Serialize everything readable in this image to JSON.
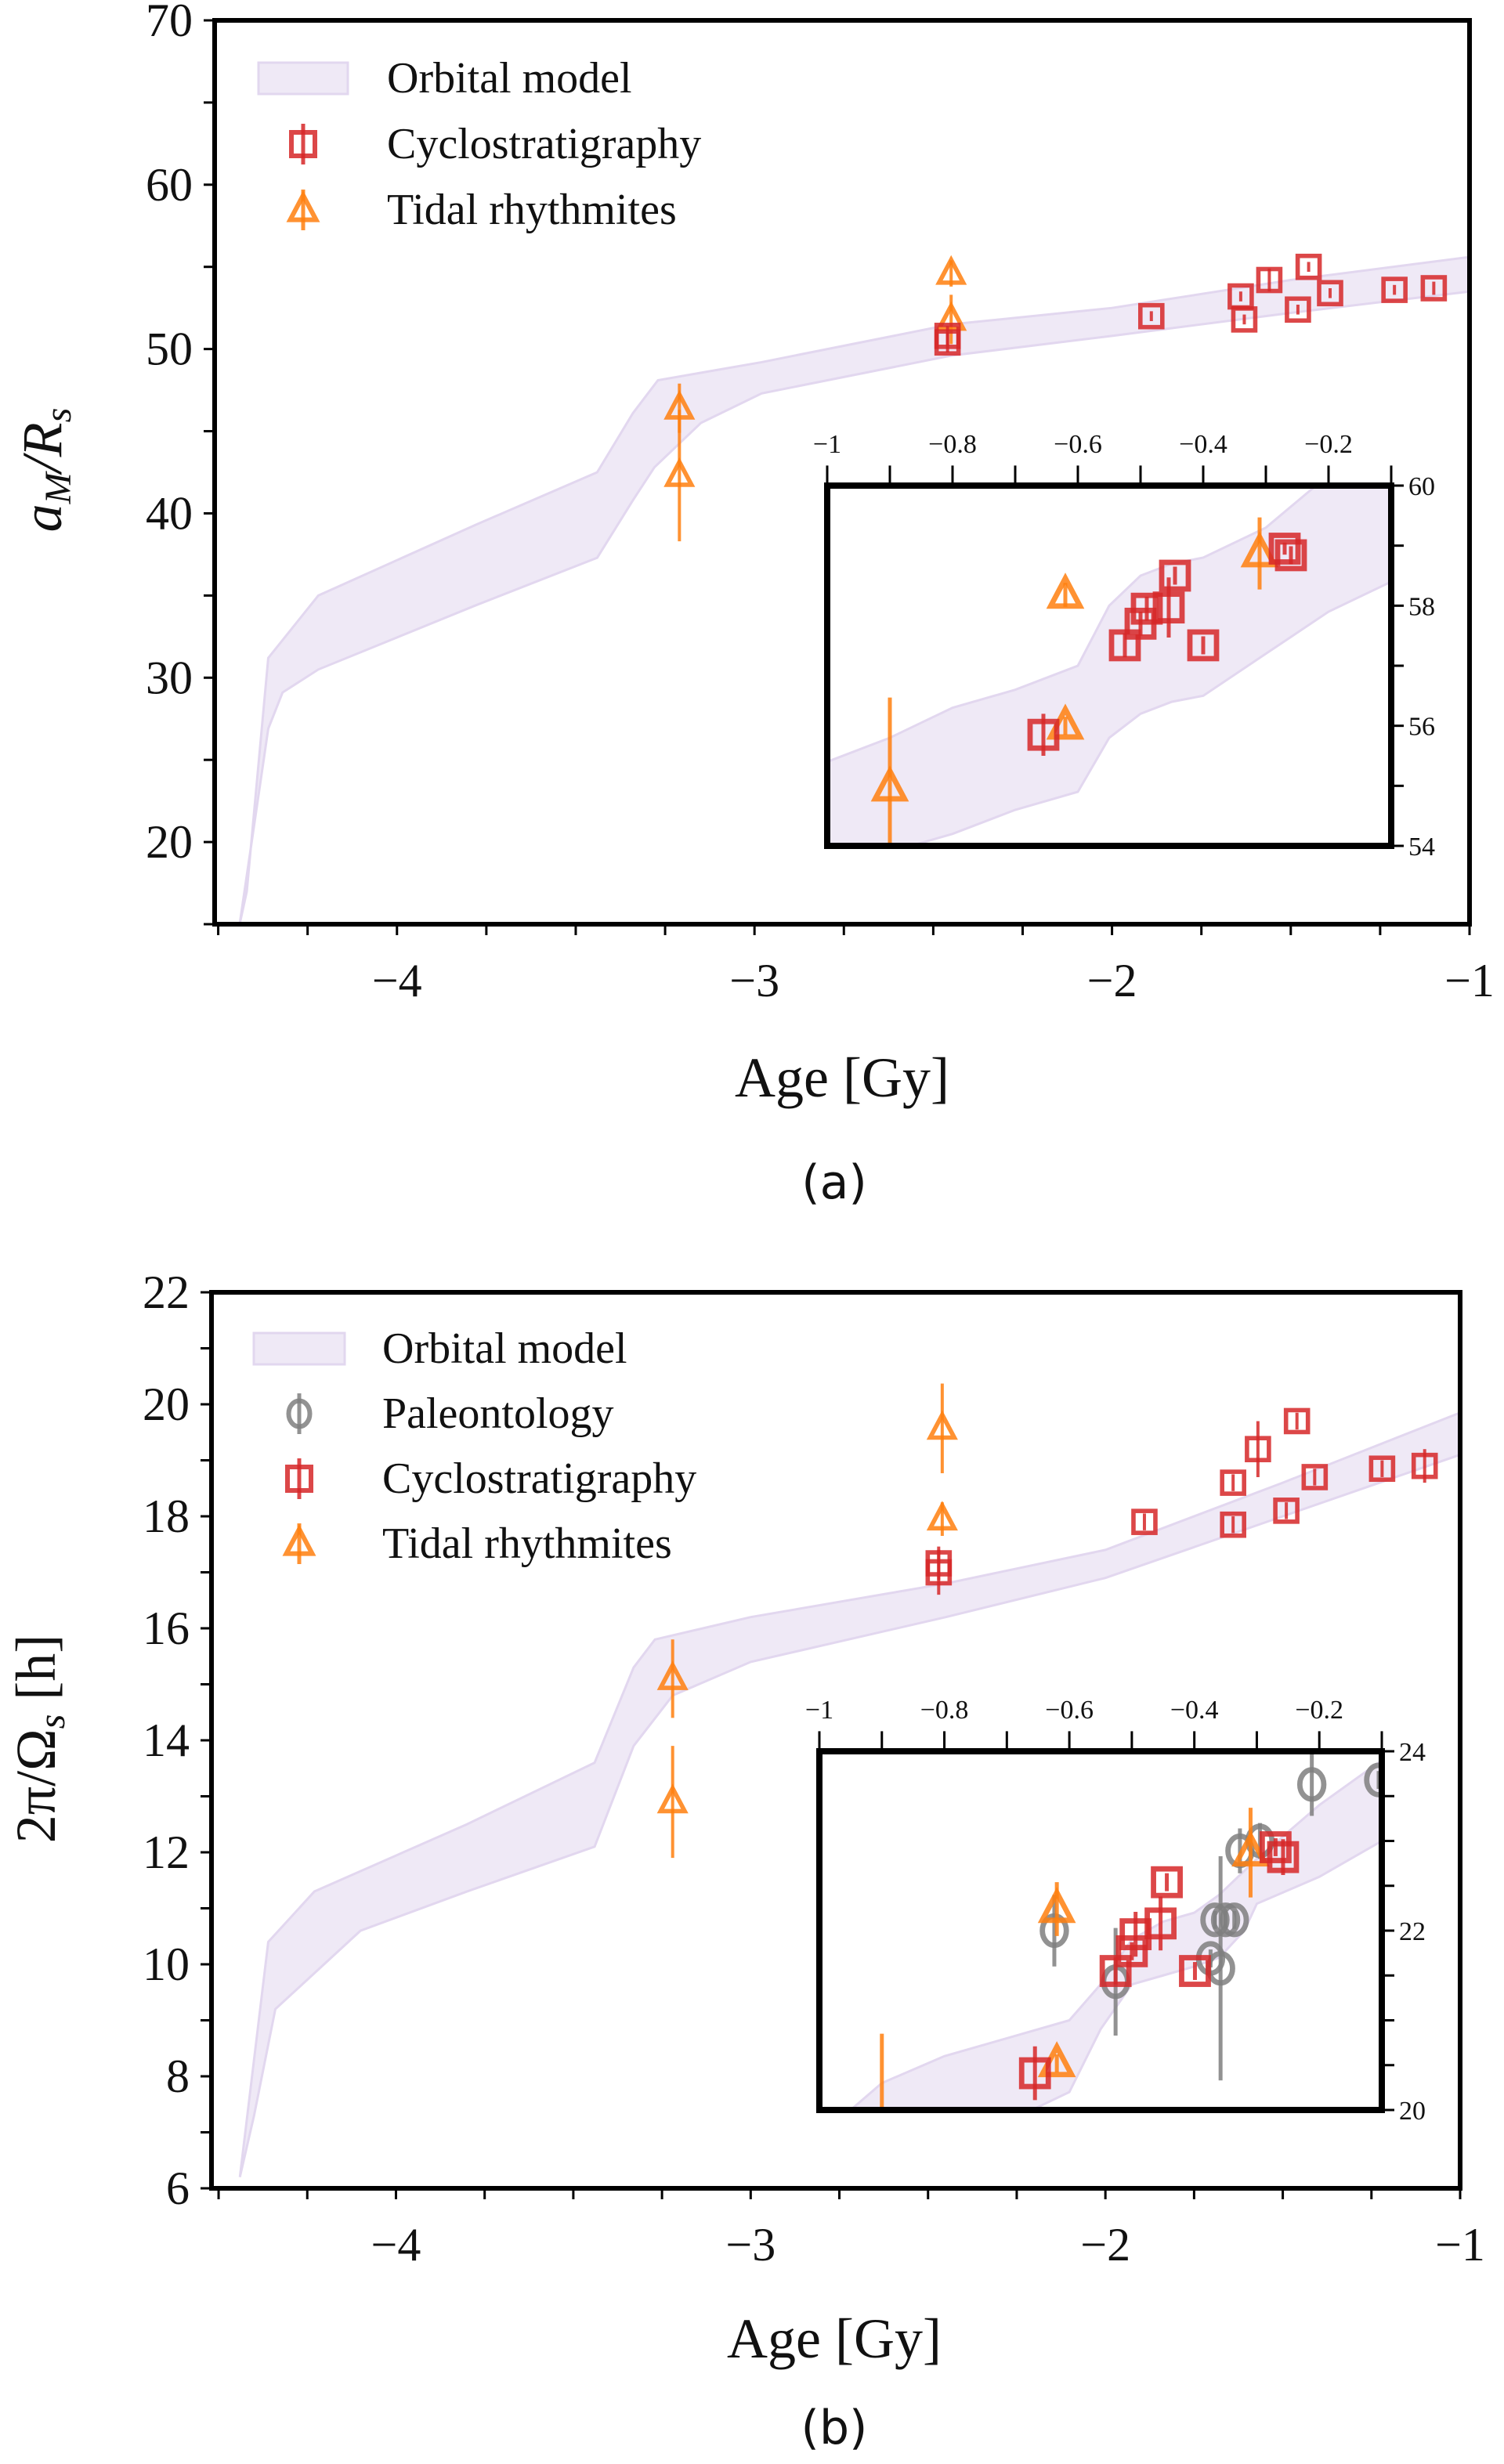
{
  "colors": {
    "band_fill": "#efe9f6",
    "band_edge": "#e2d7ef",
    "cyclo": "#d62728",
    "tidal": "#ff7f0e",
    "paleo": "#7f7f7f",
    "axis": "#000000"
  },
  "chart_data": [
    {
      "type": "scatter",
      "caption": "(a)",
      "xlabel": "Age [Gy]",
      "ylabel_parts": [
        {
          "t": "a"
        },
        {
          "t": "M",
          "sub": true
        },
        {
          "t": "/R"
        },
        {
          "t": "s",
          "sub": true
        }
      ],
      "legend": [
        {
          "label": "Orbital model",
          "kind": "band"
        },
        {
          "label": "Cyclostratigraphy",
          "kind": "cyclo"
        },
        {
          "label": "Tidal rhythmites",
          "kind": "tidal"
        }
      ],
      "legend_placement": "top-left",
      "main": {
        "xlim": [
          -4.51,
          -1
        ],
        "ylim": [
          15,
          70
        ],
        "xticks": [
          -4,
          -3,
          -2,
          -1
        ],
        "xtick_labels": [
          "−4",
          "−3",
          "−2",
          "−1"
        ],
        "xminor_step": 0.25,
        "yticks": [
          20,
          30,
          40,
          50,
          60,
          70
        ],
        "ytick_labels": [
          "20",
          "30",
          "40",
          "50",
          "60",
          "70"
        ],
        "yminor_step": 5,
        "band_upper": [
          [
            -4.44,
            15
          ],
          [
            -4.42,
            17
          ],
          [
            -4.36,
            31.2
          ],
          [
            -4.22,
            35
          ],
          [
            -3.78,
            39.3
          ],
          [
            -3.44,
            42.5
          ],
          [
            -3.34,
            46.1
          ],
          [
            -3.27,
            48.1
          ],
          [
            -2.98,
            49.2
          ],
          [
            -2.45,
            51.5
          ],
          [
            -2,
            52.5
          ],
          [
            -1.5,
            54.2
          ],
          [
            -1,
            55.6
          ]
        ],
        "band_lower": [
          [
            -4.44,
            15
          ],
          [
            -4.36,
            26.9
          ],
          [
            -4.32,
            29.1
          ],
          [
            -4.22,
            30.5
          ],
          [
            -3.78,
            34.4
          ],
          [
            -3.44,
            37.3
          ],
          [
            -3.34,
            40.8
          ],
          [
            -3.28,
            42.8
          ],
          [
            -3.15,
            45.5
          ],
          [
            -2.98,
            47.3
          ],
          [
            -2.45,
            49.6
          ],
          [
            -2,
            50.8
          ],
          [
            -1.5,
            52.2
          ],
          [
            -1,
            53.5
          ]
        ],
        "series": {
          "cyclo": [
            [
              -2.46,
              50.8,
              0.6
            ],
            [
              -2.46,
              50.4,
              0.6
            ],
            [
              -1.89,
              52.0,
              0.3
            ],
            [
              -1.64,
              53.2,
              0.3
            ],
            [
              -1.63,
              51.8,
              0.3
            ],
            [
              -1.56,
              54.2,
              0.7
            ],
            [
              -1.45,
              55.0,
              0.3
            ],
            [
              -1.48,
              52.4,
              0.3
            ],
            [
              -1.39,
              53.4,
              0.3
            ],
            [
              -1.21,
              53.6,
              0.3
            ],
            [
              -1.1,
              53.7,
              0.4
            ]
          ],
          "tidal": [
            [
              -3.21,
              46.4,
              1.5
            ],
            [
              -3.21,
              42.3,
              4.0
            ],
            [
              -2.45,
              54.6,
              0.8
            ],
            [
              -2.45,
              51.8,
              1.5
            ]
          ]
        }
      },
      "inset": {
        "xlim": [
          -1,
          -0.1
        ],
        "ylim": [
          54,
          60
        ],
        "xticks": [
          -1,
          -0.8,
          -0.6,
          -0.4,
          -0.2
        ],
        "xtick_labels": [
          "−1",
          "−0.8",
          "−0.6",
          "−0.4",
          "−0.2"
        ],
        "xminor_step": 0.1,
        "yticks": [
          54,
          56,
          58,
          60
        ],
        "ytick_labels": [
          "54",
          "56",
          "58",
          "60"
        ],
        "yminor_step": 1,
        "band_upper": [
          [
            -1,
            55.4
          ],
          [
            -0.9,
            55.8
          ],
          [
            -0.8,
            56.3
          ],
          [
            -0.7,
            56.6
          ],
          [
            -0.6,
            57.0
          ],
          [
            -0.55,
            58.0
          ],
          [
            -0.5,
            58.5
          ],
          [
            -0.45,
            58.7
          ],
          [
            -0.4,
            58.8
          ],
          [
            -0.3,
            59.3
          ],
          [
            -0.22,
            60
          ],
          [
            -0.1,
            60
          ]
        ],
        "band_lower": [
          [
            -1,
            53.6
          ],
          [
            -0.8,
            54.2
          ],
          [
            -0.7,
            54.6
          ],
          [
            -0.6,
            54.9
          ],
          [
            -0.55,
            55.8
          ],
          [
            -0.5,
            56.2
          ],
          [
            -0.45,
            56.4
          ],
          [
            -0.4,
            56.5
          ],
          [
            -0.3,
            57.2
          ],
          [
            -0.2,
            57.9
          ],
          [
            -0.1,
            58.4
          ]
        ],
        "series": {
          "cyclo": [
            [
              -0.655,
              55.85,
              0.35
            ],
            [
              -0.525,
              57.34,
              0.2
            ],
            [
              -0.5,
              57.7,
              0.2
            ],
            [
              -0.49,
              57.95,
              0.2
            ],
            [
              -0.455,
              57.97,
              0.5
            ],
            [
              -0.445,
              58.5,
              0.15
            ],
            [
              -0.4,
              57.34,
              0.15
            ],
            [
              -0.27,
              58.95,
              0.1
            ],
            [
              -0.26,
              58.84,
              0.15
            ]
          ],
          "tidal": [
            [
              -0.9,
              54.97,
              1.5
            ],
            [
              -0.62,
              58.18,
              0.2
            ],
            [
              -0.62,
              56.0,
              0.15
            ],
            [
              -0.31,
              58.87,
              0.6
            ]
          ]
        }
      }
    },
    {
      "type": "scatter",
      "caption": "(b)",
      "xlabel": "Age [Gy]",
      "ylabel_parts": [
        {
          "t": "2π/Ω"
        },
        {
          "t": "s",
          "sub": true
        },
        {
          "t": " [h]"
        }
      ],
      "legend": [
        {
          "label": "Orbital model",
          "kind": "band"
        },
        {
          "label": "Paleontology",
          "kind": "paleo"
        },
        {
          "label": "Cyclostratigraphy",
          "kind": "cyclo"
        },
        {
          "label": "Tidal rhythmites",
          "kind": "tidal"
        }
      ],
      "legend_placement": "top-left",
      "main": {
        "xlim": [
          -4.52,
          -1
        ],
        "ylim": [
          6,
          22
        ],
        "xticks": [
          -4,
          -3,
          -2,
          -1
        ],
        "xtick_labels": [
          "−4",
          "−3",
          "−2",
          "−1"
        ],
        "xminor_step": 0.25,
        "yticks": [
          6,
          8,
          10,
          12,
          14,
          16,
          18,
          20,
          22
        ],
        "ytick_labels": [
          "6",
          "8",
          "10",
          "12",
          "14",
          "16",
          "18",
          "20",
          "22"
        ],
        "yminor_step": 1,
        "band_upper": [
          [
            -4.44,
            6.2
          ],
          [
            -4.36,
            10.4
          ],
          [
            -4.23,
            11.3
          ],
          [
            -3.8,
            12.5
          ],
          [
            -3.44,
            13.6
          ],
          [
            -3.33,
            15.3
          ],
          [
            -3.27,
            15.8
          ],
          [
            -3.0,
            16.2
          ],
          [
            -2.45,
            16.8
          ],
          [
            -2,
            17.4
          ],
          [
            -1.5,
            18.6
          ],
          [
            -1,
            19.85
          ]
        ],
        "band_lower": [
          [
            -4.44,
            6.2
          ],
          [
            -4.4,
            7.3
          ],
          [
            -4.34,
            9.2
          ],
          [
            -4.1,
            10.6
          ],
          [
            -3.8,
            11.3
          ],
          [
            -3.44,
            12.1
          ],
          [
            -3.33,
            13.9
          ],
          [
            -3.22,
            14.8
          ],
          [
            -3.0,
            15.4
          ],
          [
            -2.45,
            16.2
          ],
          [
            -2,
            16.9
          ],
          [
            -1.5,
            18.0
          ],
          [
            -1,
            19.1
          ]
        ],
        "series": {
          "cyclo": [
            [
              -2.47,
              17.16,
              0.3
            ],
            [
              -2.47,
              17.0,
              0.4
            ],
            [
              -1.89,
              17.9,
              0.15
            ],
            [
              -1.64,
              18.6,
              0.15
            ],
            [
              -1.64,
              17.85,
              0.15
            ],
            [
              -1.57,
              19.2,
              0.5
            ],
            [
              -1.46,
              19.7,
              0.15
            ],
            [
              -1.49,
              18.1,
              0.15
            ],
            [
              -1.41,
              18.7,
              0.15
            ],
            [
              -1.22,
              18.85,
              0.15
            ],
            [
              -1.1,
              18.9,
              0.3
            ]
          ],
          "tidal": [
            [
              -2.46,
              19.57,
              0.8
            ],
            [
              -2.46,
              17.95,
              0.3
            ],
            [
              -3.22,
              15.1,
              0.7
            ],
            [
              -3.22,
              12.9,
              1.0
            ]
          ]
        }
      },
      "inset": {
        "xlim": [
          -1,
          -0.1
        ],
        "ylim": [
          20,
          24
        ],
        "xticks": [
          -1,
          -0.8,
          -0.6,
          -0.4,
          -0.2
        ],
        "xtick_labels": [
          "−1",
          "−0.8",
          "−0.6",
          "−0.4",
          "−0.2"
        ],
        "xminor_step": 0.1,
        "yticks": [
          20,
          22,
          24
        ],
        "ytick_labels": [
          "20",
          "22",
          "24"
        ],
        "yminor_step": 0.5,
        "band_upper": [
          [
            -0.95,
            20.0
          ],
          [
            -0.9,
            20.3
          ],
          [
            -0.8,
            20.6
          ],
          [
            -0.7,
            20.8
          ],
          [
            -0.6,
            21.0
          ],
          [
            -0.55,
            21.4
          ],
          [
            -0.5,
            21.9
          ],
          [
            -0.45,
            22.1
          ],
          [
            -0.4,
            22.2
          ],
          [
            -0.36,
            22.4
          ],
          [
            -0.3,
            22.8
          ],
          [
            -0.2,
            23.4
          ],
          [
            -0.1,
            23.9
          ]
        ],
        "band_lower": [
          [
            -0.66,
            20.0
          ],
          [
            -0.6,
            20.2
          ],
          [
            -0.55,
            20.9
          ],
          [
            -0.5,
            21.4
          ],
          [
            -0.45,
            21.5
          ],
          [
            -0.4,
            21.6
          ],
          [
            -0.36,
            21.7
          ],
          [
            -0.32,
            22.0
          ],
          [
            -0.3,
            22.3
          ],
          [
            -0.2,
            22.6
          ],
          [
            -0.1,
            23.0
          ]
        ],
        "series": {
          "paleo": [
            [
              -0.624,
              22.0,
              0.4
            ],
            [
              -0.526,
              21.43,
              0.6
            ],
            [
              -0.212,
              23.63,
              0.35
            ],
            [
              -0.327,
              22.89,
              0.25
            ],
            [
              -0.295,
              23.0,
              0.2
            ],
            [
              -0.367,
              22.12,
              0.1
            ],
            [
              -0.35,
              22.12,
              0.1
            ],
            [
              -0.336,
              22.12,
              0.1
            ],
            [
              -0.374,
              21.69,
              0.1
            ],
            [
              -0.358,
              21.58,
              1.25
            ],
            [
              -0.105,
              23.68,
              0.1
            ]
          ],
          "cyclo": [
            [
              -0.655,
              20.41,
              0.3
            ],
            [
              -0.526,
              21.55,
              0.15
            ],
            [
              -0.5,
              21.77,
              0.1
            ],
            [
              -0.494,
              21.96,
              0.25
            ],
            [
              -0.454,
              22.08,
              0.3
            ],
            [
              -0.444,
              22.54,
              0.1
            ],
            [
              -0.399,
              21.55,
              0.1
            ],
            [
              -0.27,
              22.93,
              0.1
            ],
            [
              -0.258,
              22.82,
              0.2
            ]
          ],
          "tidal": [
            [
              -0.9,
              19.6,
              1.25
            ],
            [
              -0.62,
              22.24,
              0.3
            ],
            [
              -0.62,
              20.52,
              0.1
            ],
            [
              -0.31,
              22.87,
              0.5
            ]
          ]
        }
      }
    }
  ]
}
